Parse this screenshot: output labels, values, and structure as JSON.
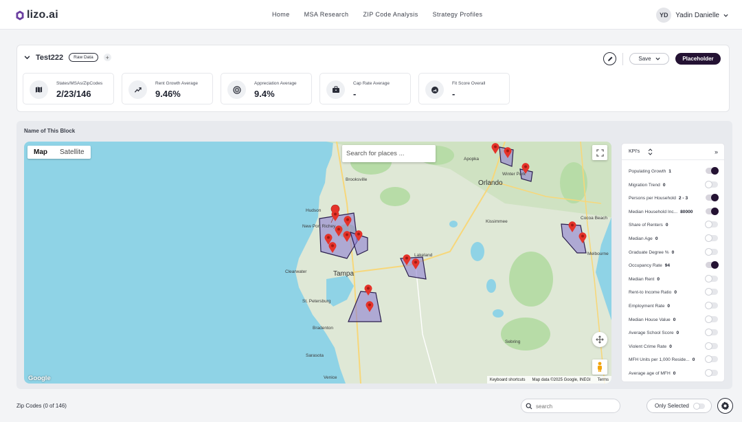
{
  "brand": {
    "name": "lizo.ai"
  },
  "nav": {
    "items": [
      "Home",
      "MSA Research",
      "ZIP Code Analysis",
      "Strategy Profiles"
    ]
  },
  "user": {
    "initials": "YD",
    "name": "Yadin Danielle"
  },
  "block1": {
    "title": "Test222",
    "badge": "Raw Data",
    "add_label": "+",
    "save_label": "Save",
    "primary_label": "Placeholder",
    "stats": [
      {
        "label": "States/MSAs/ZipCodes",
        "value": "2/23/146",
        "icon": "map-icon"
      },
      {
        "label": "Rent Growth Average",
        "value": "9.46%",
        "icon": "growth-icon"
      },
      {
        "label": "Appreciation Average",
        "value": "9.4%",
        "icon": "target-icon"
      },
      {
        "label": "Cap Rate Average",
        "value": "-",
        "icon": "briefcase-icon"
      },
      {
        "label": "Fit Score Overall",
        "value": "-",
        "icon": "gauge-icon"
      }
    ]
  },
  "block2": {
    "title": "Name of This Block",
    "map": {
      "tabs": [
        "Map",
        "Satellite"
      ],
      "active_tab": "Map",
      "search_placeholder": "Search for places ...",
      "google_label": "Google",
      "attribution": {
        "shortcuts": "Keyboard shortcuts",
        "data": "Map data ©2025 Google, INEGI",
        "terms": "Terms"
      },
      "cities": {
        "orlando": "Orlando",
        "tampa": "Tampa",
        "clearwater": "Clearwater",
        "stpete": "St. Petersburg",
        "brooksville": "Brooksville",
        "hudson": "Hudson",
        "newport": "New Port Richey",
        "apopka": "Apopka",
        "winterpark": "Winter Park",
        "kissimmee": "Kissimmee",
        "lakeland": "Lakeland",
        "cocoabeach": "Cocoa Beach",
        "melbourne": "Melbourne",
        "sebring": "Sebring",
        "bradenton": "Bradenton",
        "sarasota": "Sarasota",
        "venice": "Venice"
      }
    },
    "kpi": {
      "title": "KPI's",
      "expand_label": "»",
      "items": [
        {
          "label": "Populating Growth",
          "value": "1",
          "on": true
        },
        {
          "label": "Migration Trend",
          "value": "0",
          "on": false
        },
        {
          "label": "Persons per Household",
          "value": "2 - 3",
          "on": true
        },
        {
          "label": "Median Household Inc...",
          "value": "80000",
          "on": true
        },
        {
          "label": "Share of Renters",
          "value": "0",
          "on": false
        },
        {
          "label": "Median Age",
          "value": "0",
          "on": false
        },
        {
          "label": "Graduate Degree %",
          "value": "0",
          "on": false
        },
        {
          "label": "Occupancy Rate",
          "value": "94",
          "on": true
        },
        {
          "label": "Median Rent",
          "value": "0",
          "on": false
        },
        {
          "label": "Rent-to Income Ratio",
          "value": "0",
          "on": false
        },
        {
          "label": "Employment Rate",
          "value": "0",
          "on": false
        },
        {
          "label": "Median House Value",
          "value": "0",
          "on": false
        },
        {
          "label": "Average School Score",
          "value": "0",
          "on": false
        },
        {
          "label": "Violent Crime Rate",
          "value": "0",
          "on": false
        },
        {
          "label": "MFH Units per 1,000 Reside...",
          "value": "0",
          "on": false
        },
        {
          "label": "Average age of MFH",
          "value": "0",
          "on": false
        }
      ]
    }
  },
  "bottom": {
    "zip_title": "Zip Codes (0 of 146)",
    "search_placeholder": "search",
    "only_selected_label": "Only Selected"
  }
}
